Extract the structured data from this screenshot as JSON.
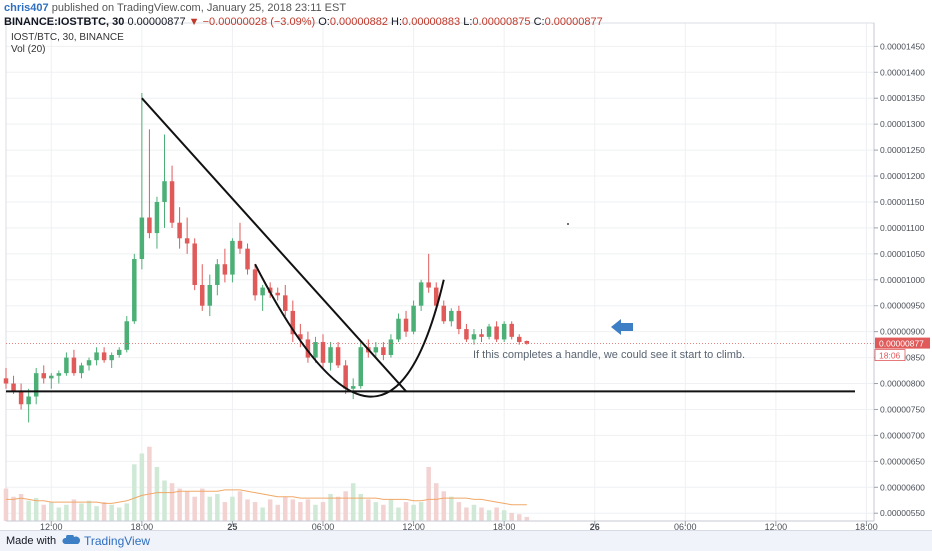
{
  "header": {
    "author": "chris407",
    "published": "published on TradingView.com, January 25, 2018 23:11 EST",
    "symbol_line": "BINANCE:IOSTBTC, 30",
    "last": "0.00000877",
    "change": "−0.00000028 (−3.09%)",
    "open_label": "O:",
    "open": "0.00000882",
    "high_label": "H:",
    "high": "0.00000883",
    "low_label": "L:",
    "low": "0.00000875",
    "close_label": "C:",
    "close": "0.00000877",
    "instrument": "IOST/BTC, 30, BINANCE",
    "volume_indicator": "Vol (20)"
  },
  "footer": {
    "made_with": "Made with",
    "brand": "TradingView"
  },
  "colors": {
    "up": "#4caf76",
    "down": "#e05a5a",
    "up_vol": "#cfe9d6",
    "down_vol": "#f3d2d2",
    "ma": "#f0a868",
    "grid": "#eef0f3",
    "arrow": "#3d7fc4",
    "price_line": "#e05a5a"
  },
  "chart_data": {
    "type": "candlestick",
    "price_axis": {
      "ticks": [
        5.5e-06,
        6e-06,
        6.5e-06,
        7e-06,
        7.5e-06,
        8e-06,
        8.5e-06,
        9e-06,
        9.5e-06,
        1e-05,
        1.05e-05,
        1.1e-05,
        1.15e-05,
        1.2e-05,
        1.25e-05,
        1.3e-05,
        1.35e-05,
        1.4e-05,
        1.45e-05
      ],
      "tick_labels": [
        "0.00000550",
        "0.00000600",
        "0.00000650",
        "0.00000700",
        "0.00000750",
        "0.00000800",
        "0.00000850",
        "0.00000900",
        "0.00000950",
        "0.00001000",
        "0.00001050",
        "0.00001100",
        "0.00001150",
        "0.00001200",
        "0.00001250",
        "0.00001300",
        "0.00001350",
        "0.00001400",
        "0.00001450"
      ],
      "range": [
        5.35e-06,
        1.495e-05
      ]
    },
    "time_axis": {
      "labels": [
        "12:00",
        "18:00",
        "25",
        "06:00",
        "12:00",
        "18:00",
        "26",
        "06:00",
        "12:00",
        "18:00"
      ],
      "bar_index": [
        6,
        18,
        30,
        42,
        54,
        66,
        78,
        90,
        102,
        114
      ],
      "range": [
        0,
        115
      ]
    },
    "last_price_label": "0.00000877",
    "countdown": "18:06",
    "candles": [
      [
        8.1e-06,
        8.3e-06,
        7.9e-06,
        8e-06
      ],
      [
        8e-06,
        8.15e-06,
        7.8e-06,
        7.85e-06
      ],
      [
        7.85e-06,
        8e-06,
        7.5e-06,
        7.6e-06
      ],
      [
        7.6e-06,
        7.9e-06,
        7.25e-06,
        7.75e-06
      ],
      [
        7.75e-06,
        8.3e-06,
        7.6e-06,
        8.2e-06
      ],
      [
        8.2e-06,
        8.35e-06,
        8e-06,
        8.1e-06
      ],
      [
        8.1e-06,
        8.2e-06,
        7.9e-06,
        8.15e-06
      ],
      [
        8.15e-06,
        8.25e-06,
        8e-06,
        8.2e-06
      ],
      [
        8.2e-06,
        8.6e-06,
        8.15e-06,
        8.5e-06
      ],
      [
        8.5e-06,
        8.65e-06,
        8.15e-06,
        8.2e-06
      ],
      [
        8.2e-06,
        8.4e-06,
        8.1e-06,
        8.35e-06
      ],
      [
        8.35e-06,
        8.5e-06,
        8.25e-06,
        8.45e-06
      ],
      [
        8.45e-06,
        8.7e-06,
        8.35e-06,
        8.6e-06
      ],
      [
        8.6e-06,
        8.7e-06,
        8.4e-06,
        8.45e-06
      ],
      [
        8.45e-06,
        8.6e-06,
        8.3e-06,
        8.55e-06
      ],
      [
        8.55e-06,
        8.7e-06,
        8.5e-06,
        8.65e-06
      ],
      [
        8.65e-06,
        9.3e-06,
        8.6e-06,
        9.2e-06
      ],
      [
        9.2e-06,
        1.05e-05,
        9.15e-06,
        1.04e-05
      ],
      [
        1.04e-05,
        1.36e-05,
        1.02e-05,
        1.12e-05
      ],
      [
        1.12e-05,
        1.29e-05,
        1.08e-05,
        1.09e-05
      ],
      [
        1.09e-05,
        1.16e-05,
        1.06e-05,
        1.15e-05
      ],
      [
        1.15e-05,
        1.28e-05,
        1.1e-05,
        1.19e-05
      ],
      [
        1.19e-05,
        1.22e-05,
        1.1e-05,
        1.11e-05
      ],
      [
        1.11e-05,
        1.14e-05,
        1.06e-05,
        1.08e-05
      ],
      [
        1.08e-05,
        1.12e-05,
        1.05e-05,
        1.07e-05
      ],
      [
        1.07e-05,
        1.08e-05,
        9.8e-06,
        9.9e-06
      ],
      [
        9.9e-06,
        1.03e-05,
        9.4e-06,
        9.5e-06
      ],
      [
        9.5e-06,
        1.01e-05,
        9.3e-06,
        9.9e-06
      ],
      [
        9.9e-06,
        1.04e-05,
        9.7e-06,
        1.03e-05
      ],
      [
        1.03e-05,
        1.06e-05,
        9.95e-06,
        1.01e-05
      ],
      [
        1.01e-05,
        1.08e-05,
        9.95e-06,
        1.075e-05
      ],
      [
        1.075e-05,
        1.11e-05,
        1.05e-05,
        1.06e-05
      ],
      [
        1.06e-05,
        1.07e-05,
        1.01e-05,
        1.02e-05
      ],
      [
        1.02e-05,
        1.03e-05,
        9.6e-06,
        9.7e-06
      ],
      [
        9.7e-06,
        9.9e-06,
        9.4e-06,
        9.85e-06
      ],
      [
        9.85e-06,
        9.95e-06,
        9.65e-06,
        9.75e-06
      ],
      [
        9.75e-06,
        9.85e-06,
        9.6e-06,
        9.7e-06
      ],
      [
        9.7e-06,
        9.9e-06,
        9.3e-06,
        9.4e-06
      ],
      [
        9.4e-06,
        9.6e-06,
        8.8e-06,
        8.95e-06
      ],
      [
        8.95e-06,
        9.15e-06,
        8.7e-06,
        8.85e-06
      ],
      [
        8.85e-06,
        9e-06,
        8.4e-06,
        8.5e-06
      ],
      [
        8.5e-06,
        8.9e-06,
        8.4e-06,
        8.8e-06
      ],
      [
        8.8e-06,
        8.95e-06,
        8.3e-06,
        8.4e-06
      ],
      [
        8.4e-06,
        8.8e-06,
        8.25e-06,
        8.7e-06
      ],
      [
        8.7e-06,
        8.8e-06,
        8.3e-06,
        8.35e-06
      ],
      [
        8.35e-06,
        8.45e-06,
        7.8e-06,
        7.9e-06
      ],
      [
        7.9e-06,
        8.1e-06,
        7.7e-06,
        7.95e-06
      ],
      [
        7.95e-06,
        8.8e-06,
        7.9e-06,
        8.7e-06
      ],
      [
        8.7e-06,
        8.85e-06,
        8.5e-06,
        8.6e-06
      ],
      [
        8.6e-06,
        8.8e-06,
        8.5e-06,
        8.7e-06
      ],
      [
        8.7e-06,
        8.8e-06,
        8.45e-06,
        8.55e-06
      ],
      [
        8.55e-06,
        8.95e-06,
        8.5e-06,
        8.85e-06
      ],
      [
        8.85e-06,
        9.35e-06,
        8.8e-06,
        9.25e-06
      ],
      [
        9.25e-06,
        9.4e-06,
        8.9e-06,
        9e-06
      ],
      [
        9e-06,
        9.6e-06,
        8.95e-06,
        9.5e-06
      ],
      [
        9.5e-06,
        1e-05,
        9.4e-06,
        9.95e-06
      ],
      [
        9.95e-06,
        1.05e-05,
        9.75e-06,
        9.85e-06
      ],
      [
        9.85e-06,
        9.95e-06,
        9.4e-06,
        9.5e-06
      ],
      [
        9.5e-06,
        9.6e-06,
        9.15e-06,
        9.2e-06
      ],
      [
        9.2e-06,
        9.45e-06,
        9.1e-06,
        9.4e-06
      ],
      [
        9.4e-06,
        9.5e-06,
        8.95e-06,
        9.05e-06
      ],
      [
        9.05e-06,
        9.15e-06,
        8.8e-06,
        8.85e-06
      ],
      [
        8.85e-06,
        9.05e-06,
        8.75e-06,
        8.95e-06
      ],
      [
        8.95e-06,
        9.05e-06,
        8.8e-06,
        8.9e-06
      ],
      [
        8.9e-06,
        9.15e-06,
        8.85e-06,
        9.1e-06
      ],
      [
        9.1e-06,
        9.2e-06,
        8.8e-06,
        8.85e-06
      ],
      [
        8.85e-06,
        9.2e-06,
        8.8e-06,
        9.15e-06
      ],
      [
        9.15e-06,
        9.2e-06,
        8.85e-06,
        8.9e-06
      ],
      [
        8.9e-06,
        8.95e-06,
        8.75e-06,
        8.8e-06
      ],
      [
        8.82e-06,
        8.83e-06,
        8.75e-06,
        8.77e-06
      ]
    ],
    "volume_scale": 100,
    "volumes": [
      24,
      18,
      20,
      15,
      17,
      12,
      14,
      10,
      12,
      16,
      13,
      15,
      11,
      14,
      12,
      10,
      13,
      42,
      50,
      55,
      40,
      30,
      28,
      24,
      22,
      18,
      24,
      18,
      20,
      14,
      18,
      22,
      16,
      14,
      10,
      16,
      12,
      18,
      16,
      14,
      16,
      12,
      14,
      20,
      18,
      22,
      28,
      20,
      16,
      14,
      12,
      16,
      10,
      14,
      12,
      14,
      40,
      28,
      22,
      18,
      14,
      10,
      12,
      10,
      8,
      10,
      8,
      6,
      5,
      3
    ],
    "ma_values": [
      16,
      16,
      17,
      16,
      15,
      15,
      14,
      14,
      14,
      14,
      14,
      14,
      14,
      13,
      13,
      14,
      15,
      17,
      19,
      20,
      21,
      21,
      21,
      22,
      22,
      22,
      22,
      22,
      22,
      23,
      23,
      23,
      22,
      21,
      20,
      19,
      18,
      18,
      18,
      17,
      17,
      17,
      17,
      17,
      17,
      17,
      17,
      17,
      17,
      17,
      16,
      16,
      16,
      16,
      15,
      15,
      16,
      16,
      17,
      17,
      17,
      17,
      16,
      16,
      15,
      14,
      13,
      12,
      12,
      12
    ],
    "annotations": {
      "note": "If this completes a handle, we could see it start to climb.",
      "horizontal_support": 7.85e-06,
      "trendline": [
        [
          18,
          1.35e-05
        ],
        [
          53,
          7.85e-06
        ]
      ],
      "cup": [
        [
          33,
          1.03e-05
        ],
        [
          48,
          7.75e-06
        ],
        [
          58,
          1e-05
        ]
      ]
    }
  }
}
